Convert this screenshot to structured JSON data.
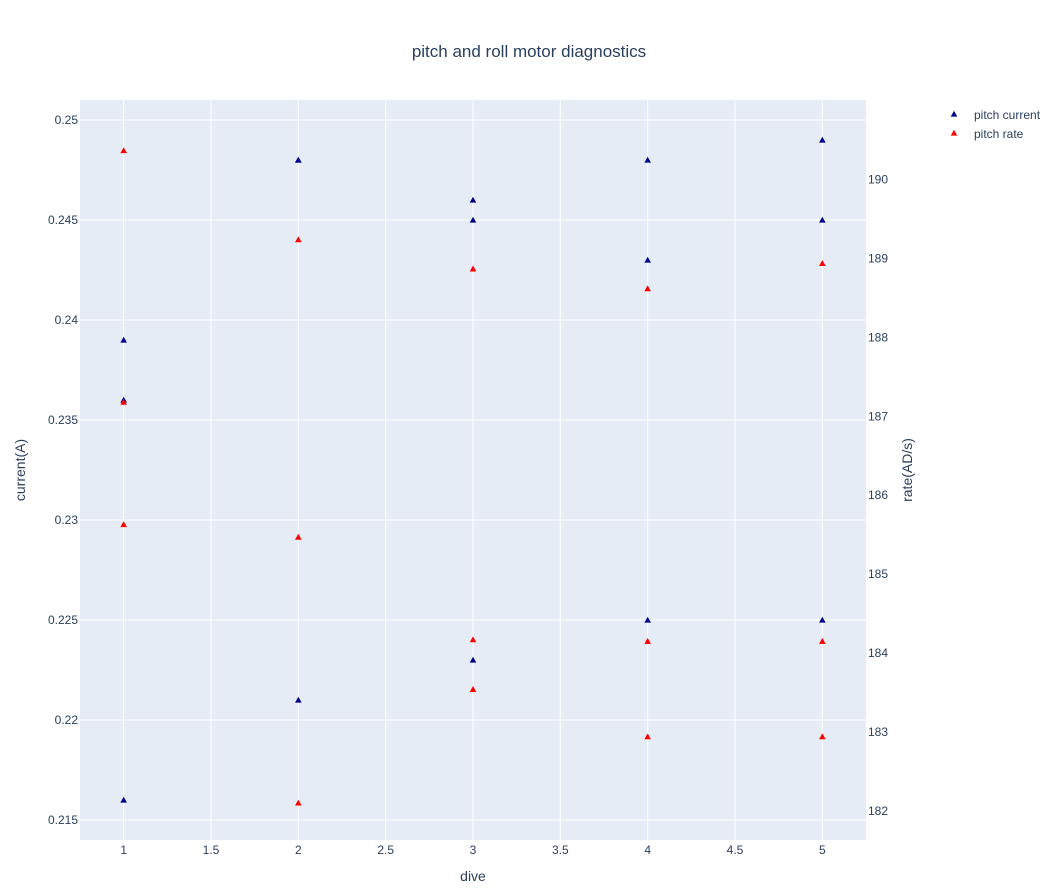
{
  "chart_data": {
    "type": "scatter",
    "title": "pitch and roll motor diagnostics",
    "xlabel": "dive",
    "ylabel_left": "current(A)",
    "ylabel_right": "rate(AD/s)",
    "x_ticks": [
      "1",
      "1.5",
      "2",
      "2.5",
      "3",
      "3.5",
      "4",
      "4.5",
      "5"
    ],
    "y_left_ticks": [
      "0.215",
      "0.22",
      "0.225",
      "0.23",
      "0.235",
      "0.24",
      "0.245",
      "0.25"
    ],
    "y_right_ticks": [
      "182",
      "183",
      "184",
      "185",
      "186",
      "187",
      "188",
      "189",
      "190"
    ],
    "xlim": [
      0.75,
      5.25
    ],
    "ylim_left": [
      0.214,
      0.251
    ],
    "ylim_right": [
      181.63,
      191.01
    ],
    "grid": true,
    "legend_position": "top-right",
    "plot_background": "#e5ecf6",
    "series": [
      {
        "name": "pitch current",
        "axis": "left",
        "marker": "triangle-up",
        "color": "#00008b",
        "x": [
          1,
          1,
          1,
          2,
          2,
          2,
          3,
          3,
          3,
          4,
          4,
          4,
          5,
          5,
          5
        ],
        "y": [
          0.239,
          0.236,
          0.216,
          0.248,
          0.248,
          0.221,
          0.246,
          0.245,
          0.223,
          0.248,
          0.243,
          0.225,
          0.249,
          0.245,
          0.225
        ]
      },
      {
        "name": "pitch rate",
        "axis": "right",
        "marker": "triangle-up",
        "color": "#ff0000",
        "x": [
          1,
          1,
          1,
          2,
          2,
          2,
          3,
          3,
          3,
          4,
          4,
          4,
          5,
          5,
          5
        ],
        "y": [
          190.37,
          187.18,
          185.63,
          189.24,
          185.47,
          182.1,
          188.87,
          184.17,
          183.54,
          188.62,
          184.15,
          182.94,
          188.94,
          184.15,
          182.94
        ]
      }
    ]
  }
}
